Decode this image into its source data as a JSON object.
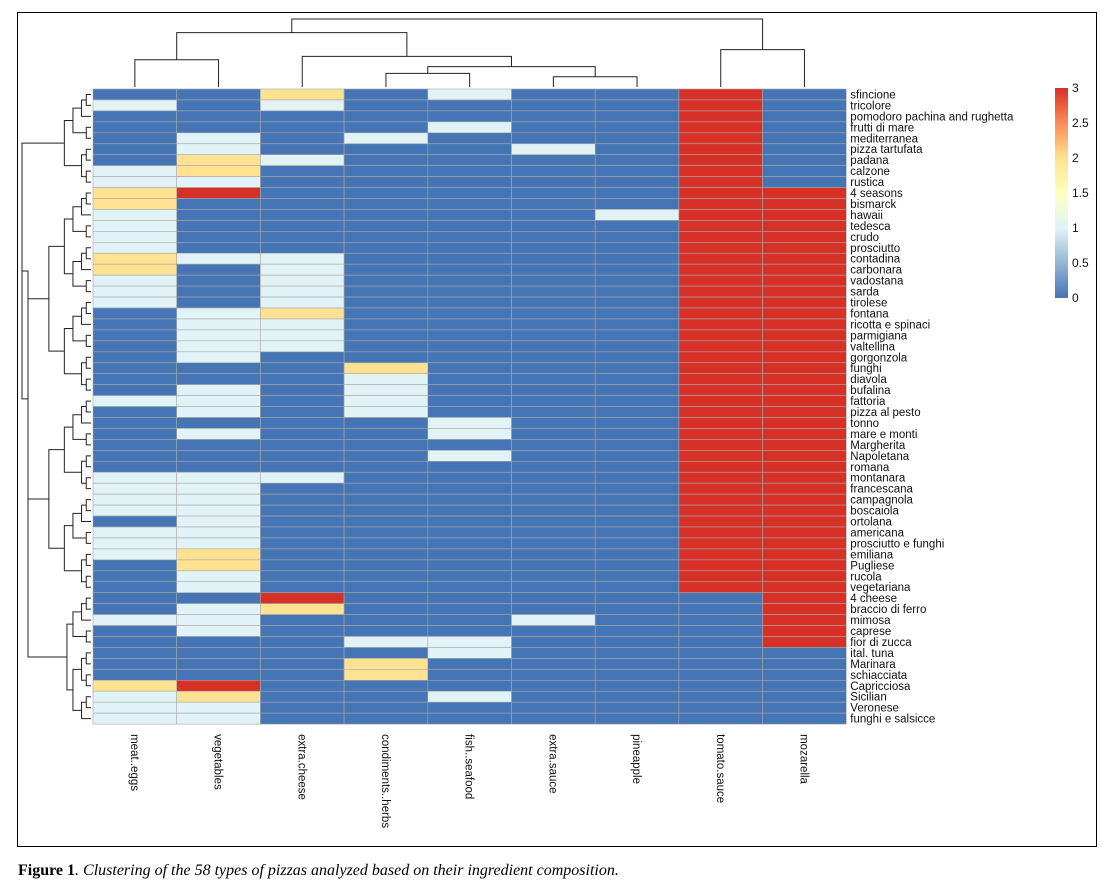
{
  "chart_data": {
    "type": "heatmap",
    "title": "",
    "columns": [
      "meat..eggs",
      "vegetables",
      "extra.cheese",
      "condiments..herbs",
      "fish..seafood",
      "extra.sauce",
      "pineapple",
      "tomato.sauce",
      "mozarella"
    ],
    "rows": [
      "sfincione",
      "tricolore",
      "pomodoro pachina and rughetta",
      "frutti di mare",
      "mediterranea",
      "pizza tartufata",
      "padana",
      "calzone",
      "rustica",
      "4 seasons",
      "bismarck",
      "hawaii",
      "tedesca",
      "crudo",
      "prosciutto",
      "contadina",
      "carbonara",
      "vadostana",
      "sarda",
      "tirolese",
      "fontana",
      "ricotta e spinaci",
      "parmigiana",
      "valtellina",
      "gorgonzola",
      "funghi",
      "diavola",
      "bufalina",
      "fattoria",
      "pizza al pesto",
      "tonno",
      "mare e monti",
      "Margherita",
      "Napoletana",
      "romana",
      "montanara",
      "francescana",
      "campagnola",
      "boscaiola",
      "ortolana",
      "americana",
      "prosciutto e funghi",
      "emiliana",
      "Pugliese",
      "rucola",
      "vegetariana",
      "4 cheese",
      "braccio di ferro",
      "mimosa",
      "caprese",
      "fior di zucca",
      "ital. tuna",
      "Marinara",
      "schiacciata",
      "Capricciosa",
      "Sicilian",
      "Veronese",
      "funghi e salsicce"
    ],
    "values": [
      [
        0,
        0,
        2,
        0,
        1,
        0,
        0,
        3,
        0
      ],
      [
        1,
        0,
        1,
        0,
        0,
        0,
        0,
        3,
        0
      ],
      [
        0,
        0,
        0,
        0,
        0,
        0,
        0,
        3,
        0
      ],
      [
        0,
        0,
        0,
        0,
        1,
        0,
        0,
        3,
        0
      ],
      [
        0,
        1,
        0,
        1,
        0,
        0,
        0,
        3,
        0
      ],
      [
        0,
        1,
        0,
        0,
        0,
        1,
        0,
        3,
        0
      ],
      [
        0,
        2,
        1,
        0,
        0,
        0,
        0,
        3,
        0
      ],
      [
        1,
        2,
        0,
        0,
        0,
        0,
        0,
        3,
        0
      ],
      [
        1,
        1,
        0,
        0,
        0,
        0,
        0,
        3,
        0
      ],
      [
        2,
        3,
        0,
        0,
        0,
        0,
        0,
        3,
        3
      ],
      [
        2,
        0,
        0,
        0,
        0,
        0,
        0,
        3,
        3
      ],
      [
        1,
        0,
        0,
        0,
        0,
        0,
        1,
        3,
        3
      ],
      [
        1,
        0,
        0,
        0,
        0,
        0,
        0,
        3,
        3
      ],
      [
        1,
        0,
        0,
        0,
        0,
        0,
        0,
        3,
        3
      ],
      [
        1,
        0,
        0,
        0,
        0,
        0,
        0,
        3,
        3
      ],
      [
        2,
        1,
        1,
        0,
        0,
        0,
        0,
        3,
        3
      ],
      [
        2,
        0,
        1,
        0,
        0,
        0,
        0,
        3,
        3
      ],
      [
        1,
        0,
        1,
        0,
        0,
        0,
        0,
        3,
        3
      ],
      [
        1,
        0,
        1,
        0,
        0,
        0,
        0,
        3,
        3
      ],
      [
        1,
        0,
        1,
        0,
        0,
        0,
        0,
        3,
        3
      ],
      [
        0,
        1,
        2,
        0,
        0,
        0,
        0,
        3,
        3
      ],
      [
        0,
        1,
        1,
        0,
        0,
        0,
        0,
        3,
        3
      ],
      [
        0,
        1,
        1,
        0,
        0,
        0,
        0,
        3,
        3
      ],
      [
        0,
        1,
        1,
        0,
        0,
        0,
        0,
        3,
        3
      ],
      [
        0,
        1,
        0,
        0,
        0,
        0,
        0,
        3,
        3
      ],
      [
        0,
        0,
        0,
        2,
        0,
        0,
        0,
        3,
        3
      ],
      [
        0,
        0,
        0,
        1,
        0,
        0,
        0,
        3,
        3
      ],
      [
        0,
        1,
        0,
        1,
        0,
        0,
        0,
        3,
        3
      ],
      [
        1,
        1,
        0,
        1,
        0,
        0,
        0,
        3,
        3
      ],
      [
        0,
        1,
        0,
        1,
        0,
        0,
        0,
        3,
        3
      ],
      [
        0,
        0,
        0,
        0,
        1,
        0,
        0,
        3,
        3
      ],
      [
        0,
        1,
        0,
        0,
        1,
        0,
        0,
        3,
        3
      ],
      [
        0,
        0,
        0,
        0,
        0,
        0,
        0,
        3,
        3
      ],
      [
        0,
        0,
        0,
        0,
        1,
        0,
        0,
        3,
        3
      ],
      [
        0,
        0,
        0,
        0,
        0,
        0,
        0,
        3,
        3
      ],
      [
        1,
        1,
        1,
        0,
        0,
        0,
        0,
        3,
        3
      ],
      [
        1,
        1,
        0,
        0,
        0,
        0,
        0,
        3,
        3
      ],
      [
        1,
        1,
        0,
        0,
        0,
        0,
        0,
        3,
        3
      ],
      [
        1,
        1,
        0,
        0,
        0,
        0,
        0,
        3,
        3
      ],
      [
        0,
        1,
        0,
        0,
        0,
        0,
        0,
        3,
        3
      ],
      [
        1,
        1,
        0,
        0,
        0,
        0,
        0,
        3,
        3
      ],
      [
        1,
        1,
        0,
        0,
        0,
        0,
        0,
        3,
        3
      ],
      [
        1,
        2,
        0,
        0,
        0,
        0,
        0,
        3,
        3
      ],
      [
        0,
        2,
        0,
        0,
        0,
        0,
        0,
        3,
        3
      ],
      [
        0,
        1,
        0,
        0,
        0,
        0,
        0,
        3,
        3
      ],
      [
        0,
        1,
        0,
        0,
        0,
        0,
        0,
        3,
        3
      ],
      [
        0,
        0,
        3,
        0,
        0,
        0,
        0,
        0,
        3
      ],
      [
        0,
        1,
        2,
        0,
        0,
        0,
        0,
        0,
        3
      ],
      [
        1,
        1,
        0,
        0,
        0,
        1,
        0,
        0,
        3
      ],
      [
        0,
        1,
        0,
        0,
        0,
        0,
        0,
        0,
        3
      ],
      [
        0,
        0,
        0,
        1,
        1,
        0,
        0,
        0,
        3
      ],
      [
        0,
        0,
        0,
        0,
        1,
        0,
        0,
        0,
        0
      ],
      [
        0,
        0,
        0,
        2,
        0,
        0,
        0,
        0,
        0
      ],
      [
        0,
        0,
        0,
        2,
        0,
        0,
        0,
        0,
        0
      ],
      [
        2,
        3,
        0,
        0,
        0,
        0,
        0,
        0,
        0
      ],
      [
        1,
        2,
        0,
        0,
        1,
        0,
        0,
        0,
        0
      ],
      [
        1,
        1,
        0,
        0,
        0,
        0,
        0,
        0,
        0
      ],
      [
        1,
        1,
        0,
        0,
        0,
        0,
        0,
        0,
        0
      ]
    ],
    "value_range": [
      0,
      3
    ],
    "legend": {
      "ticks": [
        "3",
        "2.5",
        "2",
        "1.5",
        "1",
        "0.5",
        "0"
      ],
      "tick_values": [
        3,
        2.5,
        2,
        1.5,
        1,
        0.5,
        0
      ],
      "placement": "top-right"
    },
    "colors": {
      "low": "#4575b4",
      "mid": "#ffffbf",
      "high": "#d73027",
      "grid": "#a8a8a8"
    },
    "col_dendrogram": {
      "left": [
        -5,
        -9
      ],
      "right": [
        1,
        6
      ],
      "pairs": [
        [
          -1,
          -2
        ],
        [
          -3,
          -6
        ],
        [
          -4,
          -7
        ],
        [
          -5,
          -8
        ],
        [
          2,
          3
        ],
        [
          4,
          5
        ],
        [
          7,
          8
        ]
      ]
    },
    "row_dendrogram": "hierarchical clustering of the 58 pizza types (left side)"
  },
  "caption": {
    "label": "Figure 1",
    "text": ". Clustering of the 58 types of pizzas analyzed based on their ingredient composition."
  }
}
